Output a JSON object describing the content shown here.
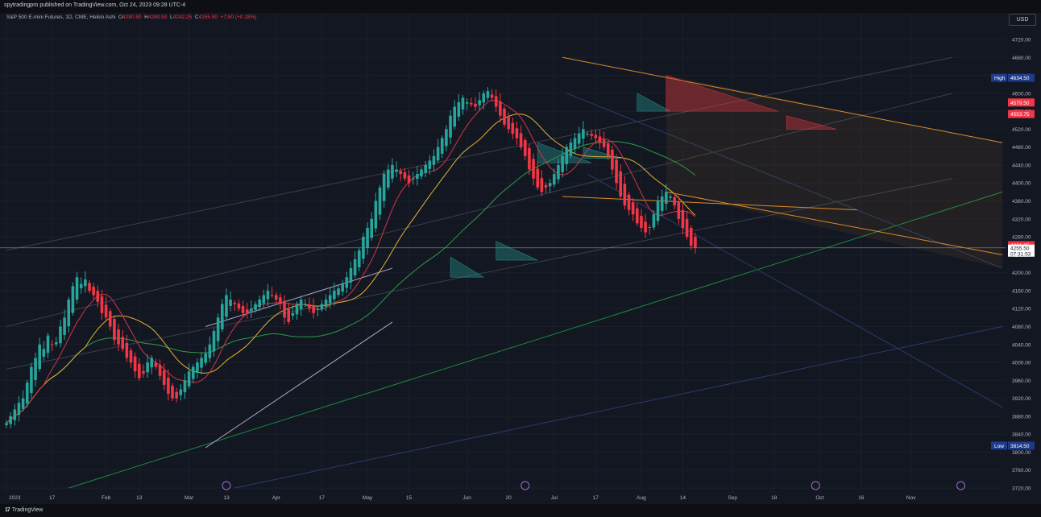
{
  "header": {
    "published": "spytradingpro published on TradingView.com, Oct 24, 2023 09:28 UTC-4",
    "symbol": "S&P 500 E-mini Futures, 1D, CME, Heikin Ashi",
    "o_key": "O",
    "o_val": "4280.50",
    "h_key": "H",
    "h_val": "4280.50",
    "l_key": "L",
    "l_val": "4242.25",
    "c_key": "C",
    "c_val": "4255.50",
    "change": "+7.50 (+0.18%)",
    "currency": "USD"
  },
  "footer": {
    "brand": "TradingView"
  },
  "colors": {
    "up": "#26a69a",
    "down": "#f23645",
    "bg": "#131722"
  },
  "chart_data": {
    "type": "candlestick",
    "y_ticks": [
      3720,
      3760,
      3800,
      3840,
      3880,
      3920,
      3960,
      4000,
      4040,
      4080,
      4120,
      4160,
      4200,
      4240,
      4280,
      4320,
      4360,
      4400,
      4440,
      4480,
      4520,
      4560,
      4600,
      4640,
      4680,
      4720
    ],
    "y_tick_labels": [
      "3720.00",
      "3760.00",
      "3800.00",
      "3840.00",
      "3880.00",
      "3920.00",
      "3960.00",
      "4000.00",
      "4040.00",
      "4080.00",
      "4120.00",
      "4160.00",
      "4200.00",
      "4240.00",
      "4280.00",
      "4320.00",
      "4360.00",
      "4400.00",
      "4440.00",
      "4480.00",
      "4520.00",
      "4560.00",
      "4600.00",
      "4640.00",
      "4680.00",
      "4720.00"
    ],
    "x_labels": [
      "2023",
      "17",
      "Feb",
      "13",
      "Mar",
      "13",
      "Apr",
      "17",
      "May",
      "15",
      "Jun",
      "20",
      "Jul",
      "17",
      "Aug",
      "14",
      "Sep",
      "18",
      "Oct",
      "16",
      "Nov"
    ],
    "x_label_bars": [
      0,
      11,
      24,
      32,
      44,
      53,
      65,
      76,
      87,
      97,
      111,
      121,
      132,
      142,
      153,
      163,
      175,
      185,
      196,
      206,
      218
    ],
    "closes": [
      3865,
      3880,
      3895,
      3910,
      3920,
      3955,
      3990,
      4010,
      4040,
      4030,
      4060,
      4040,
      4045,
      4080,
      4100,
      4140,
      4170,
      4190,
      4175,
      4185,
      4160,
      4150,
      4135,
      4110,
      4100,
      4080,
      4050,
      4040,
      4030,
      4010,
      4000,
      3980,
      3965,
      3975,
      4000,
      4010,
      3990,
      3970,
      3950,
      3930,
      3920,
      3920,
      3940,
      3960,
      3980,
      3990,
      4000,
      4010,
      4020,
      4040,
      4070,
      4100,
      4130,
      4150,
      4140,
      4130,
      4120,
      4110,
      4110,
      4120,
      4130,
      4140,
      4150,
      4160,
      4150,
      4140,
      4130,
      4100,
      4090,
      4110,
      4130,
      4140,
      4130,
      4120,
      4110,
      4120,
      4130,
      4140,
      4150,
      4160,
      4165,
      4175,
      4190,
      4210,
      4230,
      4250,
      4280,
      4300,
      4320,
      4360,
      4390,
      4420,
      4430,
      4440,
      4430,
      4420,
      4410,
      4400,
      4410,
      4420,
      4430,
      4440,
      4450,
      4460,
      4480,
      4500,
      4520,
      4550,
      4570,
      4580,
      4590,
      4580,
      4575,
      4570,
      4585,
      4600,
      4605,
      4590,
      4570,
      4550,
      4530,
      4520,
      4510,
      4500,
      4480,
      4460,
      4430,
      4410,
      4390,
      4380,
      4390,
      4400,
      4420,
      4440,
      4460,
      4480,
      4490,
      4500,
      4510,
      4520,
      4510,
      4505,
      4500,
      4490,
      4480,
      4460,
      4430,
      4400,
      4370,
      4350,
      4340,
      4330,
      4310,
      4300,
      4290,
      4300,
      4330,
      4360,
      4370,
      4380,
      4370,
      4350,
      4320,
      4300,
      4280,
      4260,
      4255
    ],
    "ma_fast": "red 10-day average",
    "ma_mid": "yellow 20-day average",
    "ma_slow": "green 50-day average",
    "horizontal_price": 4255.5,
    "price_labels": [
      {
        "key": "high_label",
        "text": "High",
        "value_text": "4634.50",
        "price": 4634.5,
        "color": "#1e3a8a"
      },
      {
        "key": "p4579",
        "text": "",
        "value_text": "4579.50",
        "price": 4579.5,
        "color": "#f23645"
      },
      {
        "key": "p4553",
        "text": "",
        "value_text": "4553.75",
        "price": 4553.75,
        "color": "#f23645"
      },
      {
        "key": "p4261",
        "text": "",
        "value_text": "4261.25",
        "price": 4261.25,
        "color": "#f23645"
      },
      {
        "key": "low_label",
        "text": "Low",
        "value_text": "3814.50",
        "price": 3814.5,
        "color": "#1e3a8a"
      }
    ],
    "current_price_label": "4255.50",
    "countdown_label": "07:31:53"
  }
}
